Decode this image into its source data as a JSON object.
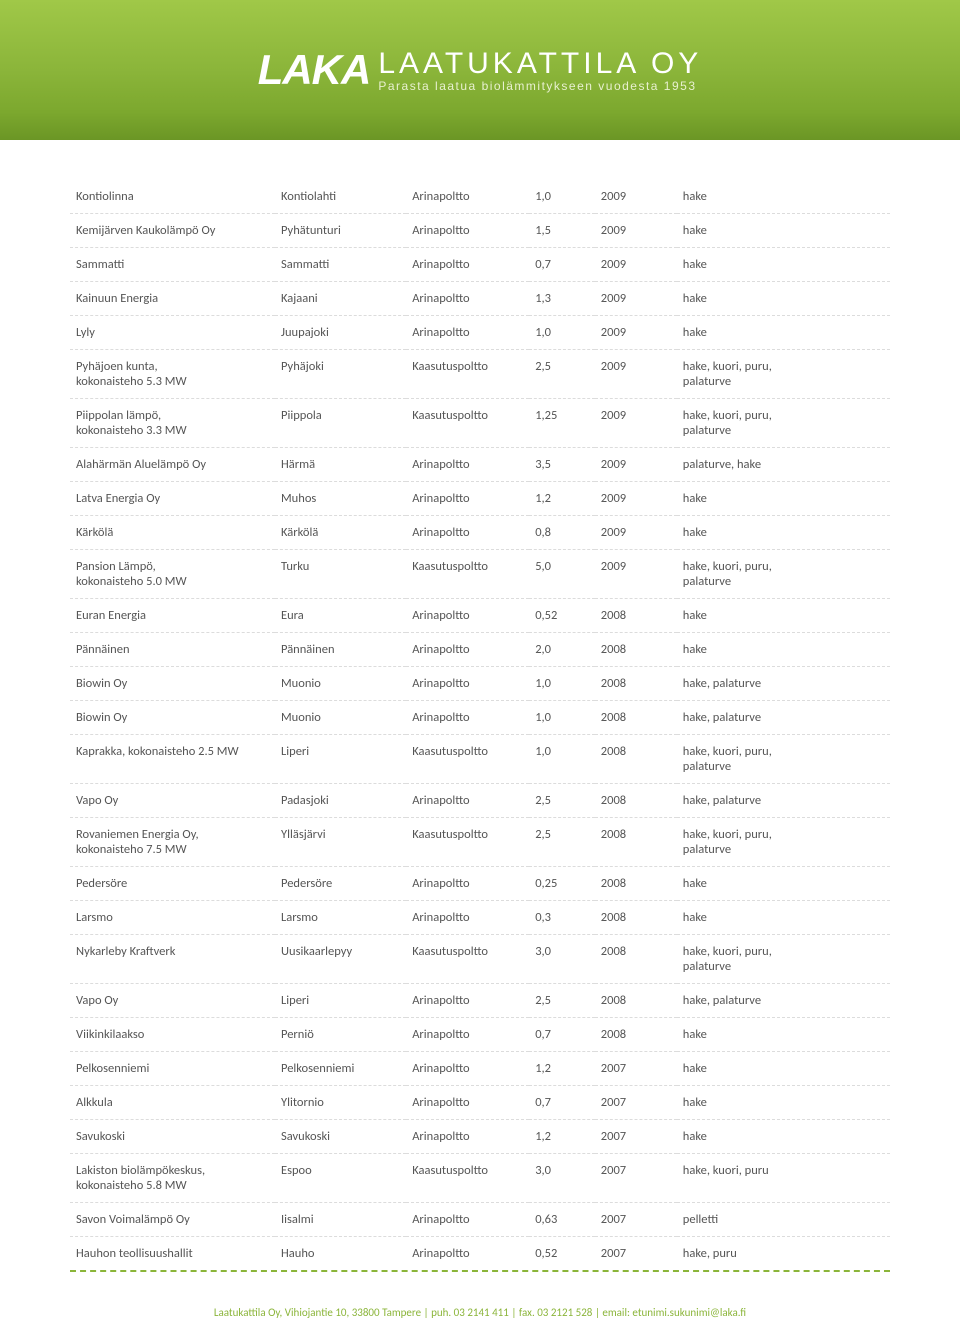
{
  "header": {
    "logo_mark": "LAKA",
    "company": "LAATUKATTILA OY",
    "tagline": "Parasta laatua biolämmitykseen vuodesta 1953"
  },
  "table": {
    "colors": {
      "text": "#555555",
      "row_border": "#dcdcdc",
      "accent": "#8bb53a",
      "header_gradient_top": "#a0c848",
      "header_gradient_bottom": "#6b9625",
      "background": "#ffffff"
    },
    "columns": [
      "client",
      "location",
      "type",
      "power",
      "year",
      "fuel"
    ],
    "rows": [
      [
        "Kontiolinna",
        "Kontiolahti",
        "Arinapoltto",
        "1,0",
        "2009",
        "hake"
      ],
      [
        "Kemijärven Kaukolämpö Oy",
        "Pyhätunturi",
        "Arinapoltto",
        "1,5",
        "2009",
        "hake"
      ],
      [
        "Sammatti",
        "Sammatti",
        "Arinapoltto",
        "0,7",
        "2009",
        "hake"
      ],
      [
        "Kainuun Energia",
        "Kajaani",
        "Arinapoltto",
        "1,3",
        "2009",
        "hake"
      ],
      [
        "Lyly",
        "Juupajoki",
        "Arinapoltto",
        "1,0",
        "2009",
        "hake"
      ],
      [
        "Pyhäjoen kunta,\nkokonaisteho 5.3 MW",
        "Pyhäjoki",
        "Kaasutuspoltto",
        "2,5",
        "2009",
        "hake, kuori, puru,\npalaturve"
      ],
      [
        "Piippolan lämpö,\nkokonaisteho 3.3 MW",
        "Piippola",
        "Kaasutuspoltto",
        "1,25",
        "2009",
        "hake, kuori, puru,\npalaturve"
      ],
      [
        "Alahärmän Aluelämpö Oy",
        "Härmä",
        "Arinapoltto",
        "3,5",
        "2009",
        "palaturve, hake"
      ],
      [
        "Latva Energia Oy",
        "Muhos",
        "Arinapoltto",
        "1,2",
        "2009",
        "hake"
      ],
      [
        "Kärkölä",
        "Kärkölä",
        "Arinapoltto",
        "0,8",
        "2009",
        "hake"
      ],
      [
        "Pansion Lämpö,\nkokonaisteho 5.0 MW",
        "Turku",
        "Kaasutuspoltto",
        "5,0",
        "2009",
        "hake, kuori, puru,\npalaturve"
      ],
      [
        "Euran Energia",
        "Eura",
        "Arinapoltto",
        "0,52",
        "2008",
        "hake"
      ],
      [
        "Pännäinen",
        "Pännäinen",
        "Arinapoltto",
        "2,0",
        "2008",
        "hake"
      ],
      [
        "Biowin Oy",
        "Muonio",
        "Arinapoltto",
        "1,0",
        "2008",
        "hake, palaturve"
      ],
      [
        "Biowin Oy",
        "Muonio",
        "Arinapoltto",
        "1,0",
        "2008",
        "hake, palaturve"
      ],
      [
        "Kaprakka, kokonaisteho 2.5 MW",
        "Liperi",
        "Kaasutuspoltto",
        "1,0",
        "2008",
        "hake, kuori, puru,\npalaturve"
      ],
      [
        "Vapo Oy",
        "Padasjoki",
        "Arinapoltto",
        "2,5",
        "2008",
        "hake, palaturve"
      ],
      [
        "Rovaniemen Energia Oy,\nkokonaisteho 7.5 MW",
        "Ylläsjärvi",
        "Kaasutuspoltto",
        "2,5",
        "2008",
        "hake, kuori, puru,\npalaturve"
      ],
      [
        "Pedersöre",
        "Pedersöre",
        "Arinapoltto",
        "0,25",
        "2008",
        "hake"
      ],
      [
        "Larsmo",
        "Larsmo",
        "Arinapoltto",
        "0,3",
        "2008",
        "hake"
      ],
      [
        "Nykarleby Kraftverk",
        "Uusikaarlepyy",
        "Kaasutuspoltto",
        "3,0",
        "2008",
        "hake, kuori, puru,\npalaturve"
      ],
      [
        "Vapo Oy",
        "Liperi",
        "Arinapoltto",
        "2,5",
        "2008",
        "hake, palaturve"
      ],
      [
        "Viikinkilaakso",
        "Perniö",
        "Arinapoltto",
        "0,7",
        "2008",
        "hake"
      ],
      [
        "Pelkosenniemi",
        "Pelkosenniemi",
        "Arinapoltto",
        "1,2",
        "2007",
        "hake"
      ],
      [
        "Alkkula",
        "Ylitornio",
        "Arinapoltto",
        "0,7",
        "2007",
        "hake"
      ],
      [
        "Savukoski",
        "Savukoski",
        "Arinapoltto",
        "1,2",
        "2007",
        "hake"
      ],
      [
        "Lakiston biolämpökeskus,\nkokonaisteho 5.8 MW",
        "Espoo",
        "Kaasutuspoltto",
        "3,0",
        "2007",
        "hake, kuori, puru"
      ],
      [
        "Savon Voimalämpö Oy",
        "Iisalmi",
        "Arinapoltto",
        "0,63",
        "2007",
        "pelletti"
      ],
      [
        "Hauhon teollisuushallit",
        "Hauho",
        "Arinapoltto",
        "0,52",
        "2007",
        "hake, puru"
      ]
    ]
  },
  "footer": {
    "text": "Laatukattila Oy, Vihiojantie 10, 33800 Tampere | puh. 03 2141 411 | fax. 03 2121 528 | email: etunimi.sukunimi@laka.fi"
  }
}
